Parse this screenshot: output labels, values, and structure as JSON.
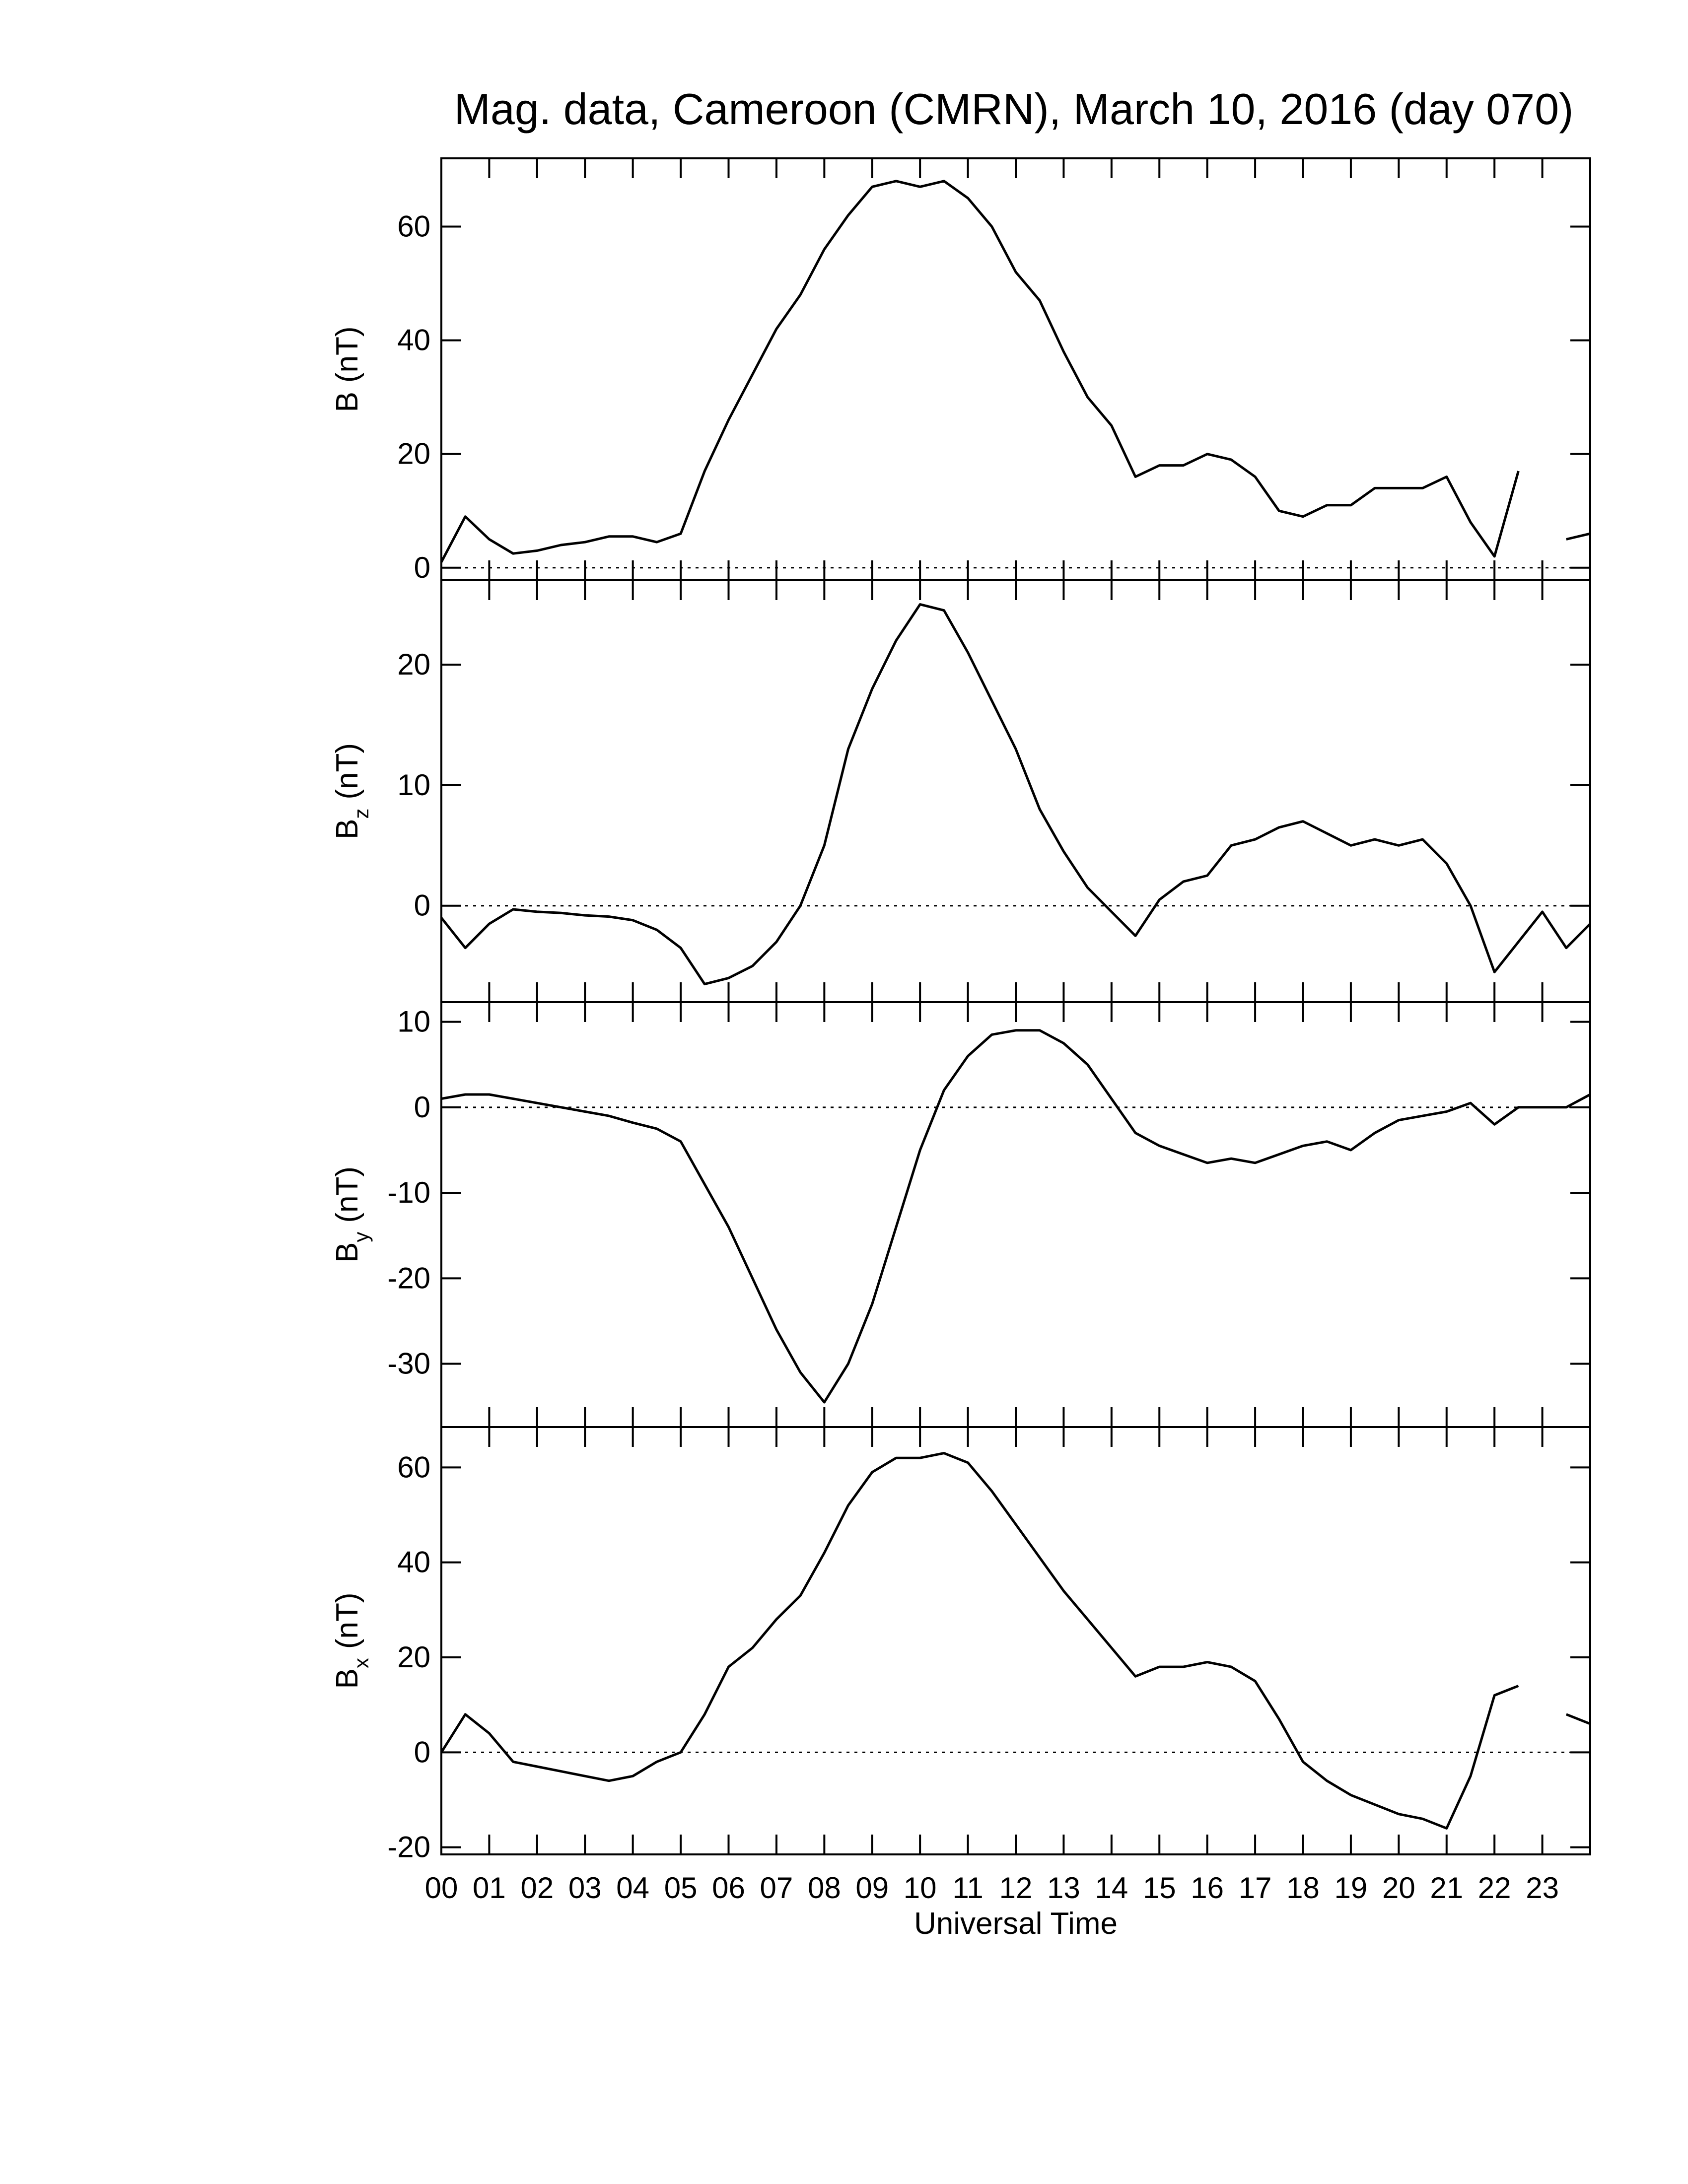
{
  "chart_data": [
    {
      "type": "line",
      "title": "Mag. data, Cameroon (CMRN), March 10, 2016 (day 070)",
      "ylabel": "B",
      "ylabel_unit": "(nT)",
      "xlim": [
        0,
        24
      ],
      "ylim": [
        -2.2,
        72
      ],
      "yticks": [
        0,
        20,
        40,
        60
      ],
      "hline": 0,
      "x": [
        0,
        0.5,
        1,
        1.5,
        2,
        2.5,
        3,
        3.5,
        4,
        4.5,
        5,
        5.5,
        6,
        6.5,
        7,
        7.5,
        8,
        8.5,
        9,
        9.5,
        10,
        10.5,
        11,
        11.5,
        12,
        12.5,
        13,
        13.5,
        14,
        14.5,
        15,
        15.5,
        16,
        16.5,
        17,
        17.5,
        18,
        18.5,
        19,
        19.5,
        20,
        20.5,
        21,
        21.5,
        22,
        22.5,
        23,
        23.5,
        24
      ],
      "series": [
        {
          "color": "#000000",
          "values": [
            1,
            9,
            5,
            2.5,
            3,
            4,
            4.5,
            5.5,
            5.5,
            4.5,
            6,
            17,
            26,
            34,
            42,
            48,
            56,
            62,
            67,
            68,
            67,
            68,
            65,
            60,
            52,
            47,
            38,
            30,
            25,
            16,
            18,
            18,
            20,
            19,
            16,
            10,
            9,
            11,
            11,
            14,
            14,
            14,
            16,
            8,
            2,
            17,
            null,
            5,
            6
          ]
        }
      ]
    },
    {
      "type": "line",
      "ylabel": "B",
      "ylabel_subscript": "z",
      "ylabel_unit": "(nT)",
      "xlim": [
        0,
        24
      ],
      "ylim": [
        -8,
        27
      ],
      "yticks": [
        0,
        10,
        20
      ],
      "hline": 0,
      "x": [
        0,
        0.5,
        1,
        1.5,
        2,
        2.5,
        3,
        3.5,
        4,
        4.5,
        5,
        5.5,
        6,
        6.5,
        7,
        7.5,
        8,
        8.5,
        9,
        9.5,
        10,
        10.5,
        11,
        11.5,
        12,
        12.5,
        13,
        13.5,
        14,
        14.5,
        15,
        15.5,
        16,
        16.5,
        17,
        17.5,
        18,
        18.5,
        19,
        19.5,
        20,
        20.5,
        21,
        21.5,
        22,
        22.5,
        23,
        23.5,
        24
      ],
      "series": [
        {
          "color": "#000000",
          "values": [
            -1,
            -3.5,
            -1.5,
            -0.3,
            -0.5,
            -0.6,
            -0.8,
            -0.9,
            -1.2,
            -2,
            -3.5,
            -6.5,
            -6,
            -5,
            -3,
            0,
            5,
            13,
            18,
            22,
            25,
            24.5,
            21,
            17,
            13,
            8,
            4.5,
            1.5,
            -0.5,
            -2.5,
            0.5,
            2,
            2.5,
            5,
            5.5,
            6.5,
            7,
            6,
            5,
            5.5,
            5,
            5.5,
            3.5,
            0,
            -5.5,
            -3,
            -0.5,
            -3.5,
            -1.5
          ]
        }
      ]
    },
    {
      "type": "line",
      "ylabel": "B",
      "ylabel_subscript": "y",
      "ylabel_unit": "(nT)",
      "xlim": [
        0,
        24
      ],
      "ylim": [
        -37.4,
        12.3
      ],
      "yticks": [
        -30,
        -20,
        -10,
        0,
        10
      ],
      "hline": 0,
      "x": [
        0,
        0.5,
        1,
        1.5,
        2,
        2.5,
        3,
        3.5,
        4,
        4.5,
        5,
        5.5,
        6,
        6.5,
        7,
        7.5,
        8,
        8.5,
        9,
        9.5,
        10,
        10.5,
        11,
        11.5,
        12,
        12.5,
        13,
        13.5,
        14,
        14.5,
        15,
        15.5,
        16,
        16.5,
        17,
        17.5,
        18,
        18.5,
        19,
        19.5,
        20,
        20.5,
        21,
        21.5,
        22,
        22.5,
        23,
        23.5,
        24
      ],
      "series": [
        {
          "color": "#000000",
          "values": [
            1,
            1.5,
            1.5,
            1,
            0.5,
            0,
            -0.5,
            -1,
            -1.8,
            -2.5,
            -4,
            -9,
            -14,
            -20,
            -26,
            -31,
            -34.5,
            -30,
            -23,
            -14,
            -5,
            2,
            6,
            8.5,
            9,
            9,
            7.5,
            5,
            1,
            -3,
            -4.5,
            -5.5,
            -6.5,
            -6,
            -6.5,
            -5.5,
            -4.5,
            -4,
            -5,
            -3,
            -1.5,
            -1,
            -0.5,
            0.5,
            -2,
            0,
            0,
            0,
            1.5
          ]
        }
      ]
    },
    {
      "type": "line",
      "ylabel": "B",
      "ylabel_subscript": "x",
      "ylabel_unit": "(nT)",
      "xlabel": "Universal Time",
      "xlim": [
        0,
        24
      ],
      "ylim": [
        -21.5,
        68.5
      ],
      "yticks": [
        -20,
        0,
        20,
        40,
        60
      ],
      "hline": 0,
      "xticks": [
        {
          "value": 0,
          "label": "00"
        },
        {
          "value": 1,
          "label": "01"
        },
        {
          "value": 2,
          "label": "02"
        },
        {
          "value": 3,
          "label": "03"
        },
        {
          "value": 4,
          "label": "04"
        },
        {
          "value": 5,
          "label": "05"
        },
        {
          "value": 6,
          "label": "06"
        },
        {
          "value": 7,
          "label": "07"
        },
        {
          "value": 8,
          "label": "08"
        },
        {
          "value": 9,
          "label": "09"
        },
        10,
        11,
        12,
        13,
        14,
        15,
        16,
        17,
        18,
        19,
        20,
        21,
        22,
        23
      ],
      "x": [
        0,
        0.5,
        1,
        1.5,
        2,
        2.5,
        3,
        3.5,
        4,
        4.5,
        5,
        5.5,
        6,
        6.5,
        7,
        7.5,
        8,
        8.5,
        9,
        9.5,
        10,
        10.5,
        11,
        11.5,
        12,
        12.5,
        13,
        13.5,
        14,
        14.5,
        15,
        15.5,
        16,
        16.5,
        17,
        17.5,
        18,
        18.5,
        19,
        19.5,
        20,
        20.5,
        21,
        21.5,
        22,
        22.5,
        23,
        23.5,
        24
      ],
      "series": [
        {
          "color": "#000000",
          "values": [
            0,
            8,
            4,
            -2,
            -3,
            -4,
            -5,
            -6,
            -5,
            -2,
            0,
            8,
            18,
            22,
            28,
            33,
            42,
            52,
            59,
            62,
            62,
            63,
            61,
            55,
            48,
            41,
            34,
            28,
            22,
            16,
            18,
            18,
            19,
            18,
            15,
            7,
            -2,
            -6,
            -9,
            -11,
            -13,
            -14,
            -16,
            -5,
            12,
            14,
            null,
            8,
            6
          ]
        }
      ]
    }
  ]
}
